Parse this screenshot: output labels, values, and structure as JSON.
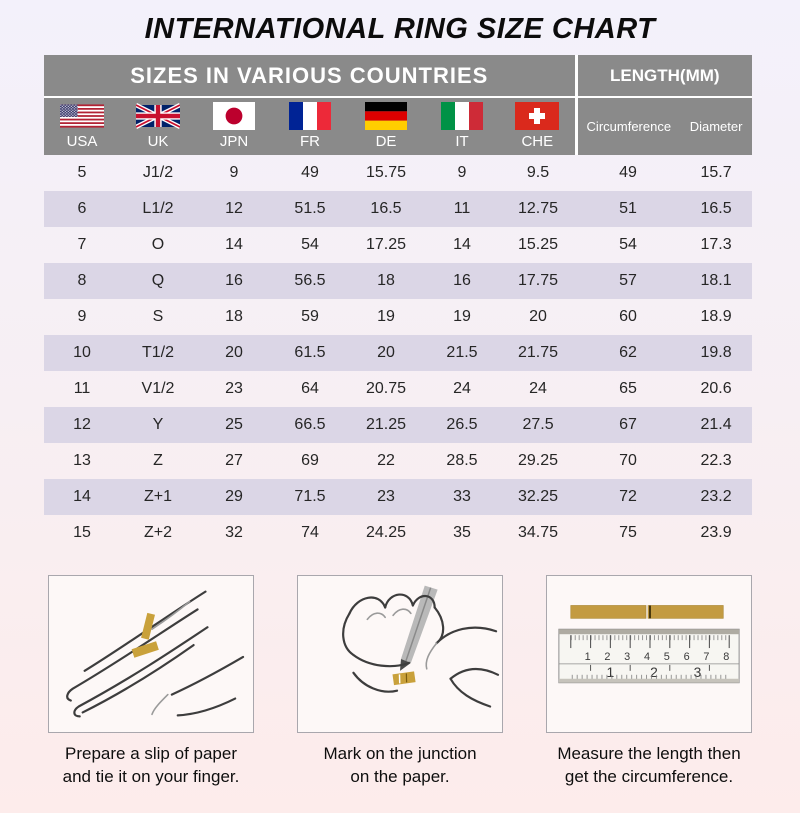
{
  "title": "INTERNATIONAL RING SIZE CHART",
  "colors": {
    "header_gray": "#8a8a8a",
    "row_lavender": "#dbd6e6",
    "paper_gold": "#c39b42",
    "background_top": "#f3f1fb",
    "background_bottom": "#fdeceb"
  },
  "table": {
    "section_sizes_label": "SIZES IN VARIOUS COUNTRIES",
    "section_length_label": "LENGTH(MM)",
    "countries": [
      {
        "code": "USA"
      },
      {
        "code": "UK"
      },
      {
        "code": "JPN"
      },
      {
        "code": "FR"
      },
      {
        "code": "DE"
      },
      {
        "code": "IT"
      },
      {
        "code": "CHE"
      }
    ],
    "length_columns": [
      "Circumference",
      "Diameter"
    ],
    "rows": [
      [
        "5",
        "J1/2",
        "9",
        "49",
        "15.75",
        "9",
        "9.5",
        "49",
        "15.7"
      ],
      [
        "6",
        "L1/2",
        "12",
        "51.5",
        "16.5",
        "11",
        "12.75",
        "51",
        "16.5"
      ],
      [
        "7",
        "O",
        "14",
        "54",
        "17.25",
        "14",
        "15.25",
        "54",
        "17.3"
      ],
      [
        "8",
        "Q",
        "16",
        "56.5",
        "18",
        "16",
        "17.75",
        "57",
        "18.1"
      ],
      [
        "9",
        "S",
        "18",
        "59",
        "19",
        "19",
        "20",
        "60",
        "18.9"
      ],
      [
        "10",
        "T1/2",
        "20",
        "61.5",
        "20",
        "21.5",
        "21.75",
        "62",
        "19.8"
      ],
      [
        "11",
        "V1/2",
        "23",
        "64",
        "20.75",
        "24",
        "24",
        "65",
        "20.6"
      ],
      [
        "12",
        "Y",
        "25",
        "66.5",
        "21.25",
        "26.5",
        "27.5",
        "67",
        "21.4"
      ],
      [
        "13",
        "Z",
        "27",
        "69",
        "22",
        "28.5",
        "29.25",
        "70",
        "22.3"
      ],
      [
        "14",
        "Z+1",
        "29",
        "71.5",
        "23",
        "33",
        "32.25",
        "72",
        "23.2"
      ],
      [
        "15",
        "Z+2",
        "32",
        "74",
        "24.25",
        "35",
        "34.75",
        "75",
        "23.9"
      ]
    ]
  },
  "instructions": [
    {
      "caption_line1": "Prepare a slip of paper",
      "caption_line2": "and tie it on your finger."
    },
    {
      "caption_line1": "Mark on the junction",
      "caption_line2": "on the paper."
    },
    {
      "caption_line1": "Measure the length then",
      "caption_line2": "get the circumference.",
      "ruler": {
        "cm": [
          "1",
          "2",
          "3",
          "4",
          "5",
          "6",
          "7",
          "8"
        ],
        "inch": [
          "1",
          "2",
          "3"
        ]
      }
    }
  ]
}
